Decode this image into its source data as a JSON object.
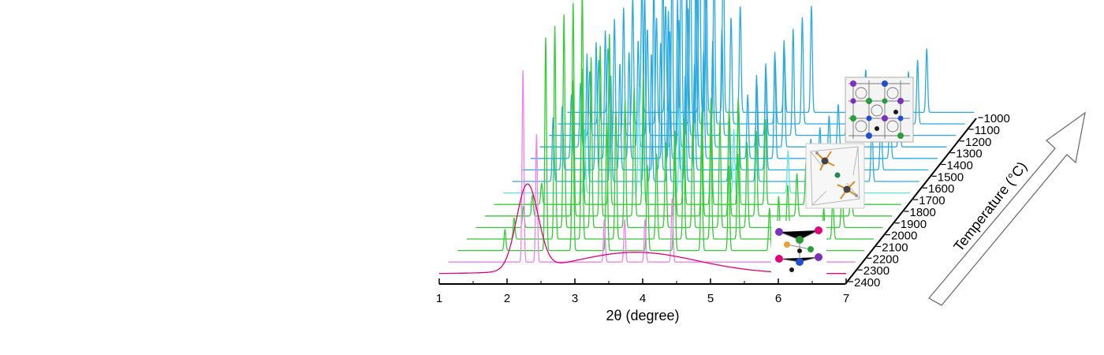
{
  "chart_data": {
    "type": "line",
    "title": "",
    "xlabel": "2θ (degree)",
    "zlabel": "Temperature (°C)",
    "xlim": [
      1,
      7
    ],
    "x_ticks": [
      "1",
      "2",
      "3",
      "4",
      "5",
      "6",
      "7"
    ],
    "series": [
      {
        "name": "1000",
        "color": "#29abe2",
        "phase": "blue",
        "peaks": [
          [
            1.6,
            0.3
          ],
          [
            2.1,
            0.6
          ],
          [
            2.45,
            0.5
          ],
          [
            2.95,
            0.9
          ],
          [
            3.05,
            0.6
          ],
          [
            3.3,
            0.8
          ],
          [
            3.55,
            0.5
          ],
          [
            4.2,
            0.3
          ],
          [
            4.6,
            0.5
          ],
          [
            5.4,
            0.2
          ],
          [
            6.3,
            0.3
          ]
        ]
      },
      {
        "name": "1100",
        "color": "#29abe2",
        "phase": "blue",
        "peaks": [
          [
            1.6,
            0.3
          ],
          [
            2.1,
            0.6
          ],
          [
            2.45,
            0.5
          ],
          [
            2.95,
            0.9
          ],
          [
            3.05,
            0.6
          ],
          [
            3.3,
            0.8
          ],
          [
            3.55,
            0.5
          ],
          [
            4.2,
            0.3
          ],
          [
            4.6,
            0.5
          ],
          [
            5.4,
            0.2
          ],
          [
            6.3,
            0.3
          ]
        ]
      },
      {
        "name": "1200",
        "color": "#29abe2",
        "phase": "blue",
        "peaks": [
          [
            1.6,
            0.3
          ],
          [
            2.1,
            0.6
          ],
          [
            2.45,
            0.5
          ],
          [
            2.95,
            0.9
          ],
          [
            3.05,
            0.6
          ],
          [
            3.3,
            0.8
          ],
          [
            3.55,
            0.5
          ],
          [
            4.2,
            0.3
          ],
          [
            4.6,
            0.5
          ],
          [
            5.4,
            0.2
          ],
          [
            6.3,
            0.3
          ]
        ]
      },
      {
        "name": "1300",
        "color": "#29abe2",
        "phase": "blue",
        "peaks": [
          [
            1.6,
            0.3
          ],
          [
            2.1,
            0.6
          ],
          [
            2.45,
            0.5
          ],
          [
            2.95,
            0.9
          ],
          [
            3.05,
            0.6
          ],
          [
            3.3,
            0.8
          ],
          [
            3.55,
            0.5
          ],
          [
            4.2,
            0.3
          ],
          [
            4.6,
            0.5
          ],
          [
            5.4,
            0.2
          ],
          [
            6.3,
            0.3
          ]
        ]
      },
      {
        "name": "1400",
        "color": "#29abe2",
        "phase": "blue",
        "peaks": [
          [
            1.6,
            0.3
          ],
          [
            2.1,
            0.6
          ],
          [
            2.45,
            0.5
          ],
          [
            2.95,
            0.9
          ],
          [
            3.05,
            0.6
          ],
          [
            3.3,
            0.8
          ],
          [
            3.55,
            0.5
          ],
          [
            4.2,
            0.3
          ],
          [
            4.6,
            0.5
          ],
          [
            5.4,
            0.2
          ],
          [
            6.3,
            0.3
          ]
        ]
      },
      {
        "name": "1500",
        "color": "#29abe2",
        "phase": "blue",
        "peaks": [
          [
            1.6,
            0.3
          ],
          [
            2.1,
            0.6
          ],
          [
            2.45,
            0.5
          ],
          [
            2.95,
            0.9
          ],
          [
            3.05,
            0.6
          ],
          [
            3.3,
            0.8
          ],
          [
            3.55,
            0.5
          ],
          [
            4.2,
            0.3
          ],
          [
            4.6,
            0.5
          ],
          [
            5.4,
            0.2
          ],
          [
            6.3,
            0.3
          ]
        ]
      },
      {
        "name": "1600",
        "color": "#29abe2",
        "phase": "blue",
        "peaks": [
          [
            1.6,
            0.3
          ],
          [
            2.1,
            0.6
          ],
          [
            2.45,
            0.5
          ],
          [
            2.95,
            0.9
          ],
          [
            3.05,
            0.6
          ],
          [
            3.3,
            0.8
          ],
          [
            3.55,
            0.5
          ],
          [
            4.2,
            0.3
          ],
          [
            4.6,
            0.5
          ],
          [
            5.4,
            0.2
          ],
          [
            6.3,
            0.3
          ]
        ]
      },
      {
        "name": "1700",
        "color": "#66e0e0",
        "phase": "cyan",
        "peaks": [
          [
            2.2,
            0.3
          ],
          [
            3.0,
            0.5
          ],
          [
            3.6,
            0.4
          ],
          [
            4.4,
            0.3
          ],
          [
            5.2,
            0.2
          ]
        ]
      },
      {
        "name": "1800",
        "color": "#33cc33",
        "phase": "green",
        "peaks": [
          [
            1.7,
            0.1
          ],
          [
            2.3,
            1.0
          ],
          [
            2.7,
            0.8
          ],
          [
            3.2,
            0.6
          ],
          [
            3.8,
            0.4
          ],
          [
            4.2,
            0.5
          ],
          [
            4.6,
            0.5
          ],
          [
            5.0,
            0.4
          ],
          [
            5.6,
            0.2
          ],
          [
            6.4,
            0.2
          ]
        ]
      },
      {
        "name": "1900",
        "color": "#33cc33",
        "phase": "green",
        "peaks": [
          [
            1.7,
            0.1
          ],
          [
            2.3,
            1.0
          ],
          [
            2.7,
            0.8
          ],
          [
            3.2,
            0.6
          ],
          [
            3.8,
            0.4
          ],
          [
            4.2,
            0.5
          ],
          [
            4.6,
            0.5
          ],
          [
            5.0,
            0.4
          ],
          [
            5.6,
            0.2
          ],
          [
            6.4,
            0.2
          ]
        ]
      },
      {
        "name": "2000",
        "color": "#33cc33",
        "phase": "green",
        "peaks": [
          [
            1.7,
            0.1
          ],
          [
            2.3,
            1.0
          ],
          [
            2.7,
            0.8
          ],
          [
            3.2,
            0.6
          ],
          [
            3.8,
            0.4
          ],
          [
            4.2,
            0.5
          ],
          [
            4.6,
            0.5
          ],
          [
            5.0,
            0.4
          ],
          [
            5.6,
            0.2
          ],
          [
            6.4,
            0.2
          ]
        ]
      },
      {
        "name": "2100",
        "color": "#33cc33",
        "phase": "green",
        "peaks": [
          [
            1.7,
            0.1
          ],
          [
            2.3,
            1.0
          ],
          [
            2.7,
            0.8
          ],
          [
            3.2,
            0.6
          ],
          [
            3.8,
            0.4
          ],
          [
            4.2,
            0.5
          ],
          [
            4.6,
            0.5
          ],
          [
            5.0,
            0.4
          ],
          [
            5.6,
            0.2
          ],
          [
            6.4,
            0.2
          ]
        ]
      },
      {
        "name": "2200",
        "color": "#33cc33",
        "phase": "green",
        "peaks": [
          [
            1.7,
            0.1
          ],
          [
            2.3,
            1.0
          ],
          [
            2.7,
            0.8
          ],
          [
            3.2,
            0.6
          ],
          [
            3.8,
            0.4
          ],
          [
            4.2,
            0.5
          ],
          [
            4.6,
            0.5
          ],
          [
            5.0,
            0.4
          ],
          [
            5.6,
            0.2
          ],
          [
            6.4,
            0.2
          ]
        ]
      },
      {
        "name": "2300",
        "color": "#ee82ee",
        "phase": "pink",
        "peaks": [
          [
            2.1,
            0.9
          ],
          [
            2.3,
            0.6
          ],
          [
            3.3,
            0.2
          ],
          [
            3.6,
            0.2
          ],
          [
            3.9,
            0.2
          ],
          [
            4.3,
            0.3
          ]
        ]
      },
      {
        "name": "2400",
        "color": "#e6007e",
        "phase": "amorphous",
        "peaks": [
          [
            2.3,
            0.4
          ],
          [
            3.9,
            0.1
          ]
        ]
      }
    ],
    "insets": [
      "crystal-structure-blue",
      "crystal-structure-cyan",
      "crystal-structure-green"
    ]
  }
}
